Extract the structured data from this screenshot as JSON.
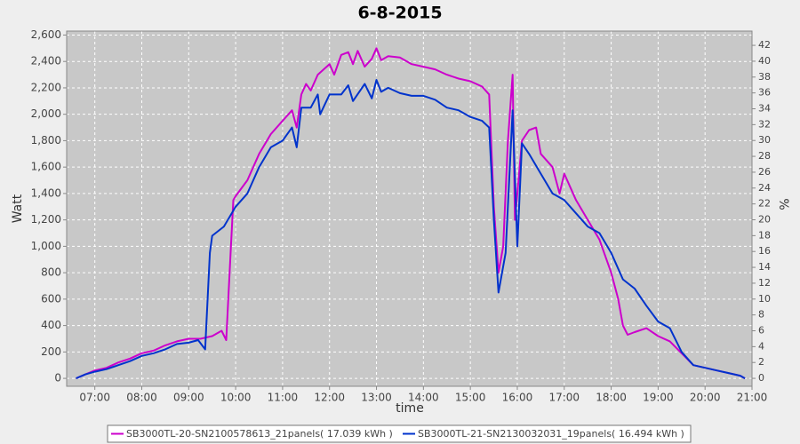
{
  "chart_data": {
    "type": "line",
    "title": "6-8-2015",
    "x_label": "time",
    "y_label": "Watt",
    "y2_label": "%",
    "xlim": [
      6.4,
      21.0
    ],
    "xticks": [
      {
        "value": 7,
        "label": "07:00"
      },
      {
        "value": 8,
        "label": "08:00"
      },
      {
        "value": 9,
        "label": "09:00"
      },
      {
        "value": 10,
        "label": "10:00"
      },
      {
        "value": 11,
        "label": "11:00"
      },
      {
        "value": 12,
        "label": "12:00"
      },
      {
        "value": 13,
        "label": "13:00"
      },
      {
        "value": 14,
        "label": "14:00"
      },
      {
        "value": 15,
        "label": "15:00"
      },
      {
        "value": 16,
        "label": "16:00"
      },
      {
        "value": 17,
        "label": "17:00"
      },
      {
        "value": 18,
        "label": "18:00"
      },
      {
        "value": 19,
        "label": "19:00"
      },
      {
        "value": 20,
        "label": "20:00"
      },
      {
        "value": 21,
        "label": "21:00"
      }
    ],
    "ylim": [
      -60,
      2630
    ],
    "yticks": [
      0,
      200,
      400,
      600,
      800,
      {
        "value": 1000,
        "label": "1,000"
      },
      {
        "value": 1200,
        "label": "1,200"
      },
      {
        "value": 1400,
        "label": "1,400"
      },
      {
        "value": 1600,
        "label": "1,600"
      },
      {
        "value": 1800,
        "label": "1,800"
      },
      {
        "value": 2000,
        "label": "2,000"
      },
      {
        "value": 2200,
        "label": "2,200"
      },
      {
        "value": 2400,
        "label": "2,400"
      },
      {
        "value": 2600,
        "label": "2,600"
      }
    ],
    "y2lim": [
      -1,
      43.8
    ],
    "y2ticks": [
      0,
      2,
      4,
      6,
      8,
      10,
      12,
      14,
      16,
      18,
      20,
      22,
      24,
      26,
      28,
      30,
      32,
      34,
      36,
      38,
      40,
      42
    ],
    "grid": true,
    "legend": "bottom",
    "series": [
      {
        "name": "SB3000TL-20-SN2100578613_21panels( 17.039 kWh )",
        "color": "#cc00cc",
        "x": [
          6.6,
          6.8,
          7.0,
          7.25,
          7.5,
          7.75,
          8.0,
          8.25,
          8.5,
          8.75,
          9.0,
          9.25,
          9.5,
          9.7,
          9.8,
          9.9,
          9.95,
          10.0,
          10.25,
          10.5,
          10.75,
          11.0,
          11.2,
          11.3,
          11.4,
          11.5,
          11.6,
          11.75,
          12.0,
          12.1,
          12.25,
          12.4,
          12.5,
          12.6,
          12.75,
          12.9,
          13.0,
          13.1,
          13.25,
          13.5,
          13.75,
          14.0,
          14.25,
          14.5,
          14.75,
          15.0,
          15.25,
          15.4,
          15.5,
          15.6,
          15.7,
          15.8,
          15.9,
          15.95,
          16.0,
          16.1,
          16.25,
          16.4,
          16.5,
          16.75,
          16.9,
          17.0,
          17.25,
          17.5,
          17.75,
          17.9,
          18.0,
          18.15,
          18.25,
          18.35,
          18.5,
          18.75,
          19.0,
          19.25,
          19.5,
          19.75,
          20.0,
          20.25,
          20.5,
          20.75,
          20.85
        ],
        "values": [
          0,
          30,
          60,
          80,
          120,
          150,
          190,
          210,
          250,
          280,
          300,
          300,
          320,
          360,
          290,
          1000,
          1350,
          1380,
          1500,
          1700,
          1850,
          1950,
          2030,
          1900,
          2150,
          2230,
          2180,
          2300,
          2380,
          2300,
          2450,
          2470,
          2380,
          2480,
          2360,
          2420,
          2500,
          2410,
          2440,
          2430,
          2380,
          2360,
          2340,
          2300,
          2270,
          2250,
          2210,
          2150,
          1300,
          800,
          1000,
          1800,
          2300,
          1200,
          1400,
          1800,
          1880,
          1900,
          1700,
          1600,
          1400,
          1550,
          1350,
          1200,
          1050,
          900,
          800,
          600,
          400,
          330,
          350,
          380,
          320,
          280,
          190,
          100,
          80,
          60,
          40,
          20,
          0
        ]
      },
      {
        "name": "SB3000TL-21-SN2130032031_19panels( 16.494 kWh )",
        "color": "#0033cc",
        "x": [
          6.6,
          6.8,
          7.0,
          7.25,
          7.5,
          7.75,
          8.0,
          8.25,
          8.5,
          8.75,
          9.0,
          9.2,
          9.35,
          9.45,
          9.5,
          9.75,
          10.0,
          10.25,
          10.5,
          10.75,
          11.0,
          11.2,
          11.3,
          11.4,
          11.6,
          11.75,
          11.8,
          12.0,
          12.25,
          12.4,
          12.5,
          12.75,
          12.9,
          13.0,
          13.1,
          13.25,
          13.5,
          13.75,
          14.0,
          14.25,
          14.5,
          14.75,
          15.0,
          15.25,
          15.4,
          15.5,
          15.6,
          15.75,
          15.9,
          16.0,
          16.1,
          16.25,
          16.5,
          16.75,
          17.0,
          17.25,
          17.5,
          17.75,
          18.0,
          18.25,
          18.5,
          18.75,
          19.0,
          19.25,
          19.5,
          19.75,
          20.0,
          20.25,
          20.5,
          20.75,
          20.85
        ],
        "values": [
          0,
          30,
          50,
          70,
          100,
          130,
          170,
          190,
          220,
          260,
          270,
          290,
          220,
          950,
          1080,
          1150,
          1300,
          1400,
          1600,
          1750,
          1800,
          1900,
          1750,
          2050,
          2050,
          2150,
          2000,
          2150,
          2150,
          2220,
          2100,
          2230,
          2120,
          2260,
          2170,
          2200,
          2160,
          2140,
          2140,
          2110,
          2050,
          2030,
          1980,
          1950,
          1900,
          1200,
          650,
          950,
          2030,
          1000,
          1780,
          1700,
          1550,
          1400,
          1350,
          1250,
          1150,
          1100,
          950,
          750,
          680,
          550,
          430,
          380,
          200,
          100,
          80,
          60,
          40,
          20,
          0
        ]
      }
    ]
  }
}
